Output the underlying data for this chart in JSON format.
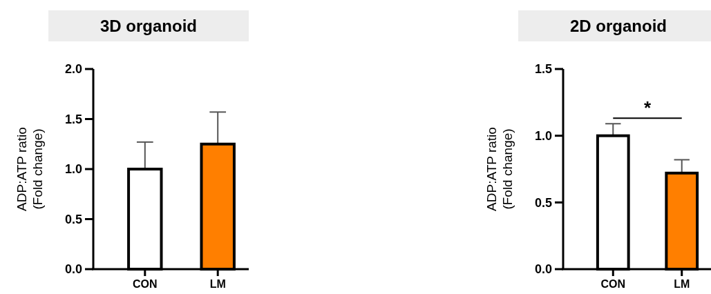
{
  "chart_data": [
    {
      "type": "bar",
      "title": "3D organoid",
      "ylabel": "ADP:ATP ratio\n(Fold change)",
      "categories": [
        "CON",
        "LM"
      ],
      "values": [
        1.0,
        1.25
      ],
      "colors": [
        "#ffffff",
        "#ff7f00"
      ],
      "errors": [
        [
          1.0,
          1.27
        ],
        [
          1.25,
          1.57
        ]
      ],
      "ylim": [
        0,
        2.0
      ],
      "yticks": [
        {
          "value": 0,
          "label": "0.0"
        },
        {
          "value": 0.5,
          "label": "0.5"
        },
        {
          "value": 1,
          "label": "1.0"
        },
        {
          "value": 1.5,
          "label": "1.5"
        },
        {
          "value": 2,
          "label": "2.0"
        }
      ]
    },
    {
      "type": "bar",
      "title": "2D organoid",
      "ylabel": "ADP:ATP ratio\n(Fold change)",
      "categories": [
        "CON",
        "LM"
      ],
      "values": [
        1.0,
        0.72
      ],
      "colors": [
        "#ffffff",
        "#ff7f00"
      ],
      "errors": [
        [
          1.0,
          1.09
        ],
        [
          0.72,
          0.82
        ]
      ],
      "ylim": [
        0,
        1.5
      ],
      "yticks": [
        {
          "value": 0,
          "label": "0.0"
        },
        {
          "value": 0.5,
          "label": "0.5"
        },
        {
          "value": 1,
          "label": "1.0"
        },
        {
          "value": 1.5,
          "label": "1.5"
        }
      ],
      "annotations": [
        "*"
      ]
    }
  ]
}
